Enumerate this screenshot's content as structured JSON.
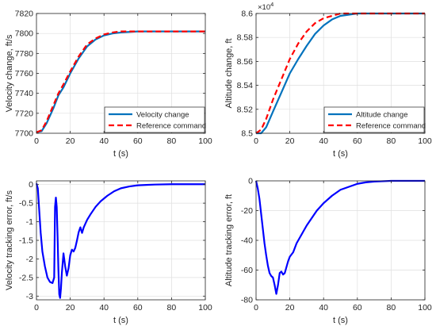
{
  "chart_data": [
    {
      "type": "line",
      "xlabel": "t (s)",
      "ylabel": "Velocity change, ft/s",
      "xlim": [
        0,
        100
      ],
      "ylim": [
        7700,
        7820
      ],
      "xticks": [
        0,
        20,
        40,
        60,
        80,
        100
      ],
      "yticks": [
        7700,
        7720,
        7740,
        7760,
        7780,
        7800,
        7820
      ],
      "ytick_labels": [
        "7700",
        "7720",
        "7740",
        "7760",
        "7780",
        "7800",
        "7820"
      ],
      "grid": true,
      "legend_position": "bottom-right",
      "series": [
        {
          "name": "Velocity change",
          "color": "#0072BD",
          "dash": "solid",
          "x": [
            0,
            3,
            6,
            10,
            13,
            16,
            20,
            25,
            30,
            35,
            40,
            45,
            50,
            60,
            70,
            80,
            90,
            100
          ],
          "y": [
            7701,
            7702,
            7710,
            7725,
            7738,
            7746,
            7760,
            7775,
            7787,
            7794,
            7798,
            7800,
            7801,
            7802,
            7802,
            7802,
            7802,
            7802
          ]
        },
        {
          "name": "Reference command",
          "color": "#FF0000",
          "dash": "dashed",
          "x": [
            0,
            3,
            6,
            10,
            13,
            16,
            20,
            25,
            30,
            35,
            40,
            45,
            50,
            60,
            70,
            80,
            90,
            100
          ],
          "y": [
            7701,
            7703,
            7712,
            7728,
            7740,
            7749,
            7762,
            7777,
            7789,
            7795,
            7799,
            7801,
            7802,
            7802,
            7802,
            7802,
            7802,
            7802
          ]
        }
      ]
    },
    {
      "type": "line",
      "xlabel": "t (s)",
      "ylabel": "Altitude change, ft",
      "xlim": [
        0,
        100
      ],
      "ylim": [
        8.5,
        8.6
      ],
      "multiplier": "×10",
      "multiplier_exp": "4",
      "xticks": [
        0,
        20,
        40,
        60,
        80,
        100
      ],
      "yticks": [
        8.5,
        8.52,
        8.54,
        8.56,
        8.58,
        8.6
      ],
      "ytick_labels": [
        "8.5",
        "8.52",
        "8.54",
        "8.56",
        "8.58",
        "8.6"
      ],
      "grid": true,
      "legend_position": "bottom-right",
      "series": [
        {
          "name": "Altitude change",
          "color": "#0072BD",
          "dash": "solid",
          "x": [
            0,
            3,
            6,
            10,
            15,
            20,
            25,
            30,
            35,
            40,
            45,
            50,
            55,
            60,
            70,
            80,
            90,
            100
          ],
          "y": [
            8.5,
            8.5,
            8.505,
            8.518,
            8.534,
            8.55,
            8.562,
            8.573,
            8.583,
            8.59,
            8.595,
            8.598,
            8.599,
            8.6,
            8.6,
            8.6,
            8.6,
            8.6
          ]
        },
        {
          "name": "Reference command",
          "color": "#FF0000",
          "dash": "dashed",
          "x": [
            0,
            3,
            6,
            10,
            15,
            20,
            25,
            30,
            35,
            40,
            45,
            50,
            55,
            60,
            70,
            80,
            90,
            100
          ],
          "y": [
            8.5,
            8.503,
            8.512,
            8.528,
            8.545,
            8.562,
            8.575,
            8.585,
            8.592,
            8.596,
            8.598,
            8.6,
            8.6,
            8.6,
            8.6,
            8.6,
            8.6,
            8.6
          ]
        }
      ]
    },
    {
      "type": "line",
      "xlabel": "t (s)",
      "ylabel": "Velocity tracking error, ft/s",
      "xlim": [
        0,
        100
      ],
      "ylim": [
        -3.1,
        0.1
      ],
      "xticks": [
        0,
        20,
        40,
        60,
        80,
        100
      ],
      "yticks": [
        0,
        -0.5,
        -1,
        -1.5,
        -2,
        -2.5,
        -3
      ],
      "ytick_labels": [
        "0",
        "-0.5",
        "-1",
        "-1.5",
        "-2",
        "-2.5",
        "-3"
      ],
      "grid": true,
      "series": [
        {
          "name": "",
          "color": "#0000FF",
          "dash": "solid",
          "x": [
            0,
            0.8,
            1.5,
            2.5,
            3.5,
            5,
            6.5,
            8,
            9.5,
            10.5,
            11,
            11.5,
            12,
            12.5,
            13,
            13.5,
            14,
            14.5,
            15,
            16,
            17,
            18,
            19,
            20,
            21,
            22,
            23,
            24,
            25,
            26,
            27,
            28,
            30,
            32,
            35,
            38,
            42,
            46,
            50,
            55,
            60,
            65,
            70,
            80,
            90,
            100
          ],
          "y": [
            0.03,
            -0.1,
            -0.6,
            -1.3,
            -1.8,
            -2.2,
            -2.5,
            -2.62,
            -2.65,
            -2.5,
            -0.6,
            -0.35,
            -0.6,
            -1.4,
            -2.3,
            -2.95,
            -3.05,
            -2.8,
            -2.4,
            -1.85,
            -2.2,
            -2.45,
            -2.25,
            -1.9,
            -1.75,
            -1.8,
            -1.7,
            -1.5,
            -1.28,
            -1.15,
            -1.3,
            -1.15,
            -0.95,
            -0.8,
            -0.6,
            -0.45,
            -0.3,
            -0.18,
            -0.1,
            -0.05,
            -0.02,
            -0.01,
            0,
            0.01,
            0.01,
            0.01
          ]
        }
      ]
    },
    {
      "type": "line",
      "xlabel": "t (s)",
      "ylabel": "Altitude tracking error, ft",
      "xlim": [
        0,
        100
      ],
      "ylim": [
        -80,
        0
      ],
      "xticks": [
        0,
        20,
        40,
        60,
        80,
        100
      ],
      "yticks": [
        0,
        -20,
        -40,
        -60,
        -80
      ],
      "ytick_labels": [
        "0",
        "-20",
        "-40",
        "-60",
        "-80"
      ],
      "grid": true,
      "series": [
        {
          "name": "",
          "color": "#0000FF",
          "dash": "solid",
          "x": [
            0,
            1,
            2,
            3,
            4,
            5,
            6,
            7,
            8,
            9,
            10,
            11,
            12,
            13,
            14,
            15,
            16,
            17,
            18,
            19,
            20,
            22,
            24,
            26,
            28,
            30,
            33,
            36,
            40,
            45,
            50,
            55,
            60,
            65,
            70,
            80,
            90,
            100
          ],
          "y": [
            0,
            -5,
            -12,
            -22,
            -32,
            -42,
            -50,
            -57,
            -62,
            -64,
            -65,
            -70,
            -76,
            -70,
            -62,
            -61,
            -63,
            -62,
            -58,
            -54,
            -51,
            -48,
            -42,
            -38,
            -34,
            -30,
            -25,
            -20,
            -15,
            -10,
            -6,
            -4,
            -2,
            -1,
            -0.5,
            0,
            0,
            0
          ]
        }
      ]
    }
  ]
}
